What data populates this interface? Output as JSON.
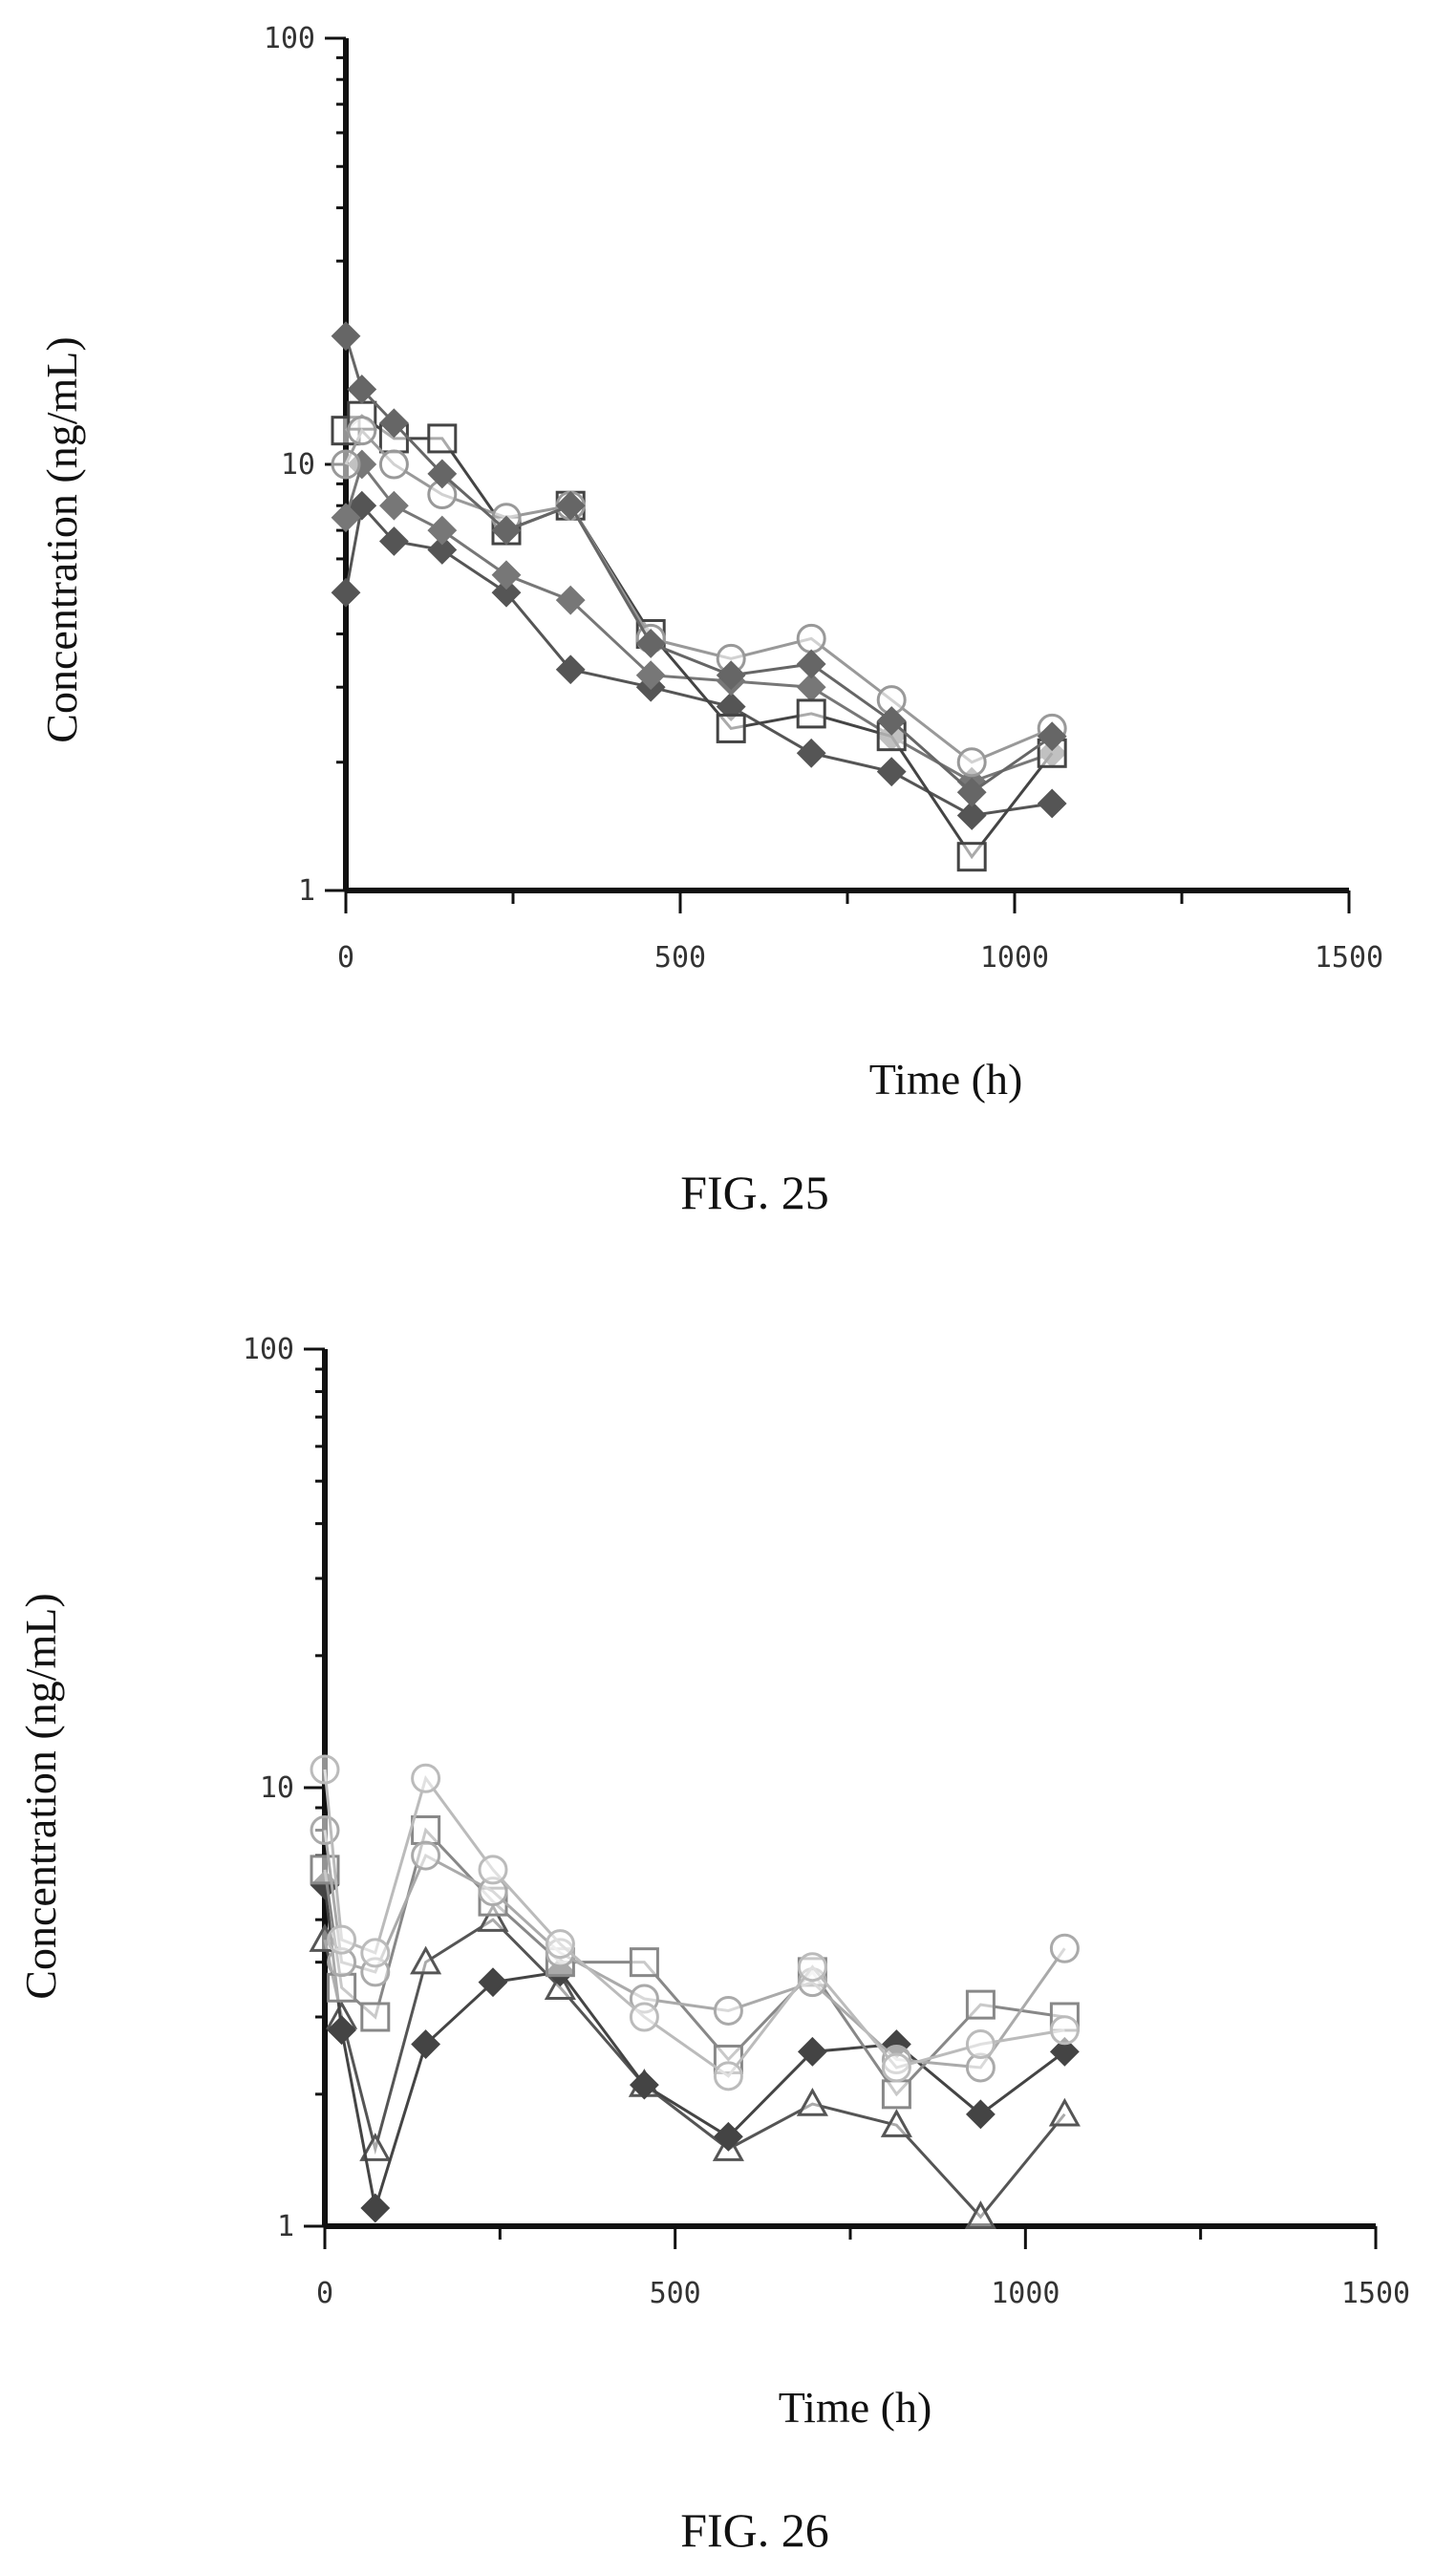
{
  "figures": [
    {
      "caption": "FIG. 25",
      "chart_data": {
        "type": "line",
        "scale_y": "log",
        "xlabel": "Time (h)",
        "ylabel": "Concentration (ng/mL)",
        "xlim": [
          0,
          1500
        ],
        "ylim": [
          1,
          100
        ],
        "x_ticks": [
          "0",
          "500",
          "1000",
          "1500"
        ],
        "y_ticks": [
          "1",
          "10",
          "100"
        ],
        "grid": false,
        "legend": "none",
        "x": [
          0,
          24,
          72,
          144,
          240,
          336,
          456,
          576,
          696,
          816,
          936,
          1056
        ],
        "series": [
          {
            "marker": "diamond",
            "color": "#555555",
            "values": [
              5.0,
              8.0,
              6.6,
              6.3,
              5.0,
              3.3,
              3.0,
              2.7,
              2.1,
              1.9,
              1.5,
              1.6
            ]
          },
          {
            "marker": "diamond",
            "color": "#777777",
            "values": [
              7.5,
              10.0,
              8.0,
              7.0,
              5.5,
              4.8,
              3.2,
              3.1,
              3.0,
              2.3,
              1.8,
              2.1
            ]
          },
          {
            "marker": "square",
            "color": "#444444",
            "values": [
              12.0,
              13.0,
              11.5,
              11.5,
              7.0,
              8.0,
              4.0,
              2.4,
              2.6,
              2.3,
              1.2,
              2.1
            ]
          },
          {
            "marker": "circle",
            "color": "#999999",
            "values": [
              10.0,
              12.0,
              10.0,
              8.5,
              7.5,
              8.0,
              3.9,
              3.5,
              3.9,
              2.8,
              2.0,
              2.4
            ]
          },
          {
            "marker": "diamond",
            "color": "#666666",
            "values": [
              20.0,
              15.0,
              12.5,
              9.5,
              7.0,
              8.0,
              3.8,
              3.2,
              3.4,
              2.5,
              1.7,
              2.3
            ]
          }
        ]
      }
    },
    {
      "caption": "FIG. 26",
      "chart_data": {
        "type": "line",
        "scale_y": "log",
        "xlabel": "Time (h)",
        "ylabel": "Concentration (ng/mL)",
        "xlim": [
          0,
          1500
        ],
        "ylim": [
          1,
          100
        ],
        "x_ticks": [
          "0",
          "500",
          "1000",
          "1500"
        ],
        "y_ticks": [
          "1",
          "10",
          "100"
        ],
        "grid": false,
        "legend": "none",
        "x": [
          0,
          24,
          72,
          144,
          240,
          336,
          456,
          576,
          696,
          816,
          936,
          1056
        ],
        "series": [
          {
            "marker": "triangle",
            "color": "#555555",
            "values": [
              4.5,
              3.0,
              1.5,
              4.0,
              5.0,
              3.5,
              2.1,
              1.5,
              1.9,
              1.7,
              1.05,
              1.8
            ]
          },
          {
            "marker": "diamond",
            "color": "#444444",
            "values": [
              6.0,
              2.8,
              1.1,
              2.6,
              3.6,
              3.8,
              2.1,
              1.6,
              2.5,
              2.6,
              1.8,
              2.5
            ]
          },
          {
            "marker": "square",
            "color": "#888888",
            "values": [
              6.5,
              3.5,
              3.0,
              8.0,
              5.5,
              4.0,
              4.0,
              2.4,
              3.8,
              2.0,
              3.2,
              3.0
            ]
          },
          {
            "marker": "circle",
            "color": "#aaaaaa",
            "values": [
              8.0,
              4.0,
              3.8,
              7.0,
              5.8,
              4.2,
              3.3,
              3.1,
              3.6,
              2.4,
              2.3,
              4.3
            ]
          },
          {
            "marker": "circle",
            "color": "#bbbbbb",
            "values": [
              11.0,
              4.5,
              4.2,
              10.5,
              6.5,
              4.4,
              3.0,
              2.2,
              3.9,
              2.3,
              2.6,
              2.8
            ]
          }
        ]
      }
    }
  ]
}
